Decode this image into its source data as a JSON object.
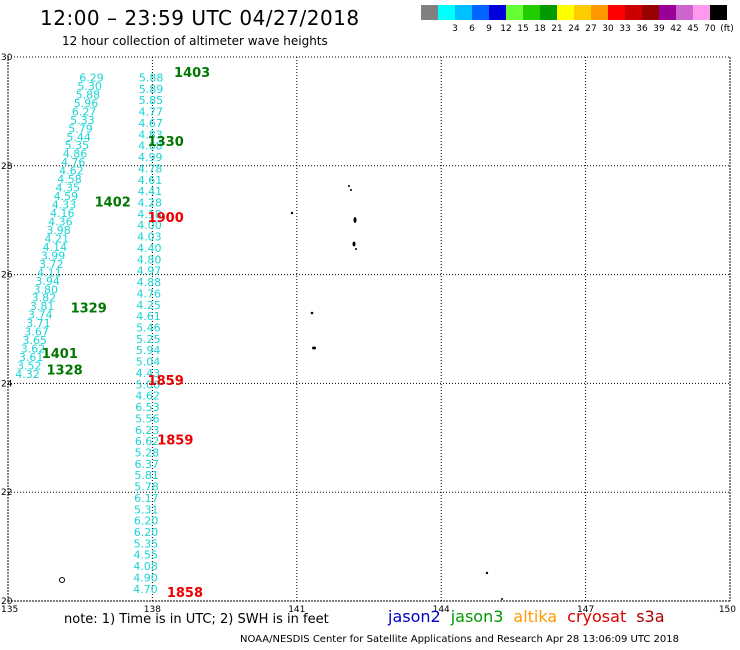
{
  "header": {
    "title": "12:00 – 23:59 UTC 04/27/2018",
    "subtitle": "12 hour collection of altimeter wave heights"
  },
  "legend": {
    "unit": "(ft)",
    "swatches": [
      {
        "label": "",
        "color": "#808080"
      },
      {
        "label": "3",
        "color": "#00ffff"
      },
      {
        "label": "6",
        "color": "#00bfff"
      },
      {
        "label": "9",
        "color": "#0066ff"
      },
      {
        "label": "12",
        "color": "#0000dd"
      },
      {
        "label": "15",
        "color": "#66ff33"
      },
      {
        "label": "18",
        "color": "#22cc00"
      },
      {
        "label": "21",
        "color": "#009900"
      },
      {
        "label": "24",
        "color": "#ffff00"
      },
      {
        "label": "27",
        "color": "#ffcc00"
      },
      {
        "label": "30",
        "color": "#ff9900"
      },
      {
        "label": "33",
        "color": "#ff0000"
      },
      {
        "label": "36",
        "color": "#cc0000"
      },
      {
        "label": "39",
        "color": "#990000"
      },
      {
        "label": "42",
        "color": "#990099"
      },
      {
        "label": "45",
        "color": "#cc66cc"
      },
      {
        "label": "70",
        "color": "#ff99ee"
      },
      {
        "label": "",
        "color": "#000000"
      }
    ]
  },
  "map": {
    "lon_ticks": [
      "135",
      "138",
      "141",
      "144",
      "147",
      "150"
    ],
    "lat_ticks": [
      "20",
      "22",
      "24",
      "26",
      "28",
      "30"
    ],
    "lon_range": [
      135,
      150
    ],
    "lat_range": [
      20,
      30
    ],
    "colors": {
      "track": "#1ad4d4",
      "jason3": "#007700",
      "cryosat": "#ee0000",
      "grid": "#000000"
    },
    "track_a_values": [
      "6.29",
      "5.30",
      "5.88",
      "5.96",
      "6.27",
      "5.33",
      "5.79",
      "5.44",
      "5.35",
      "4.86",
      "4.76",
      "4.62",
      "4.58",
      "4.35",
      "4.59",
      "4.33",
      "4.16",
      "4.36",
      "3.98",
      "4.21",
      "4.14",
      "3.99",
      "3.72",
      "4.11",
      "3.94",
      "3.80",
      "3.82",
      "3.81",
      "3.74",
      "3.71",
      "3.67",
      "3.65",
      "3.62",
      "3.61",
      "3.52",
      "4.32"
    ],
    "track_b_values": [
      "5.88",
      "5.89",
      "5.85",
      "4.77",
      "4.67",
      "4.83",
      "4.68",
      "4.99",
      "4.78",
      "4.61",
      "4.41",
      "4.28",
      "4.18",
      "4.00",
      "4.03",
      "4.40",
      "4.80",
      "4.97",
      "4.88",
      "4.76",
      "4.25",
      "4.61",
      "5.46",
      "5.25",
      "5.94",
      "5.04",
      "4.43",
      "5.06",
      "4.62",
      "6.53",
      "5.56",
      "6.23",
      "6.62",
      "5.28",
      "6.37",
      "5.81",
      "5.78",
      "6.17",
      "5.31",
      "6.20",
      "6.20",
      "5.35",
      "4.55",
      "4.08",
      "4.90",
      "4.70"
    ],
    "time_labels": [
      {
        "text": "1403",
        "sat": "jason3",
        "lon": 138.45,
        "lat": 29.63
      },
      {
        "text": "1330",
        "sat": "jason3",
        "lon": 137.9,
        "lat": 28.36
      },
      {
        "text": "1402",
        "sat": "jason3",
        "lon": 136.8,
        "lat": 27.25
      },
      {
        "text": "1900",
        "sat": "cryosat",
        "lon": 137.9,
        "lat": 26.97
      },
      {
        "text": "1329",
        "sat": "jason3",
        "lon": 136.3,
        "lat": 25.3
      },
      {
        "text": "1401",
        "sat": "jason3",
        "lon": 135.7,
        "lat": 24.47
      },
      {
        "text": "1328",
        "sat": "jason3",
        "lon": 135.8,
        "lat": 24.16
      },
      {
        "text": "1859",
        "sat": "cryosat",
        "lon": 137.9,
        "lat": 23.97
      },
      {
        "text": "1859",
        "sat": "cryosat",
        "lon": 138.1,
        "lat": 22.88
      },
      {
        "text": "1858",
        "sat": "cryosat",
        "lon": 138.3,
        "lat": 20.07
      }
    ]
  },
  "footer": {
    "note": "note: 1) Time is in UTC; 2) SWH is in feet",
    "satellites": [
      {
        "name": "jason2",
        "color": "#0000cc"
      },
      {
        "name": "jason3",
        "color": "#009900"
      },
      {
        "name": "altika",
        "color": "#ff9900"
      },
      {
        "name": "cryosat",
        "color": "#dd0000"
      },
      {
        "name": "s3a",
        "color": "#aa0000"
      }
    ],
    "credit": "NOAA/NESDIS Center for Satellite Applications and Research    Apr 28 13:06:09 UTC 2018"
  }
}
